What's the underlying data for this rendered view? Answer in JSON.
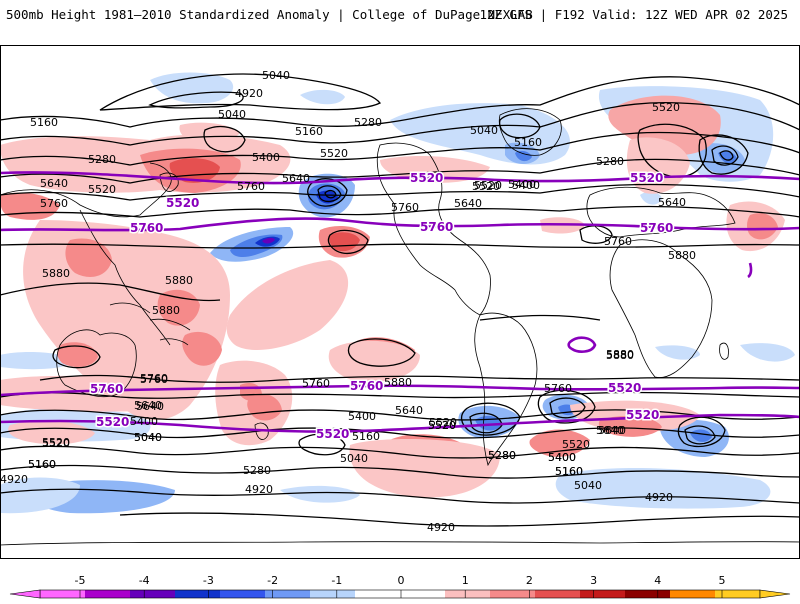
{
  "header": {
    "left": "500mb Height 1981–2010 Standardized Anomaly | College of DuPage NEXLAB",
    "right": "12Z GFS | F192 Valid: 12Z WED APR 02 2025"
  },
  "colorbar": {
    "ticks": [
      "-5",
      "-4",
      "-3",
      "-2",
      "-1",
      "0",
      "1",
      "2",
      "3",
      "4",
      "5"
    ],
    "colors": [
      "#ff66ff",
      "#aa00cc",
      "#6600bb",
      "#1133cc",
      "#3355ee",
      "#6f99f5",
      "#b7d4fb",
      "#ffffff",
      "#ffffff",
      "#fbbfbf",
      "#f58a8a",
      "#e55050",
      "#c41a1a",
      "#8b0000",
      "#ff8800",
      "#ffcc22"
    ]
  },
  "map": {
    "contour_labels": [
      "5040",
      "4920",
      "5040",
      "5160",
      "5280",
      "5160",
      "5280",
      "5400",
      "5520",
      "5640",
      "5760",
      "5520",
      "5640",
      "5520",
      "5400",
      "5280",
      "5160",
      "5040",
      "5520",
      "5640",
      "5760",
      "5880",
      "5880",
      "5880",
      "5880",
      "5760",
      "5880",
      "5760",
      "5760",
      "5640",
      "5400",
      "5520",
      "5040",
      "5160",
      "5280",
      "4920",
      "5040",
      "5160",
      "5400",
      "5520",
      "5640",
      "4920",
      "5280",
      "5400",
      "5160",
      "5040",
      "4920",
      "4920",
      "5760",
      "5520",
      "5520",
      "5640",
      "5760",
      "5880",
      "5880",
      "5520",
      "5400",
      "5520",
      "5640",
      "5760",
      "5640",
      "5280",
      "5160",
      "5640",
      "5400",
      "5520",
      "5040",
      "5160"
    ],
    "highlight_labels": [
      "5520",
      "5520",
      "5520",
      "5520",
      "5760",
      "5760",
      "5760",
      "5760",
      "5760",
      "5520",
      "5520",
      "5520"
    ],
    "land_color": "#ffffff",
    "contour_color": "#000000",
    "highlight_color": "#8800bb"
  }
}
